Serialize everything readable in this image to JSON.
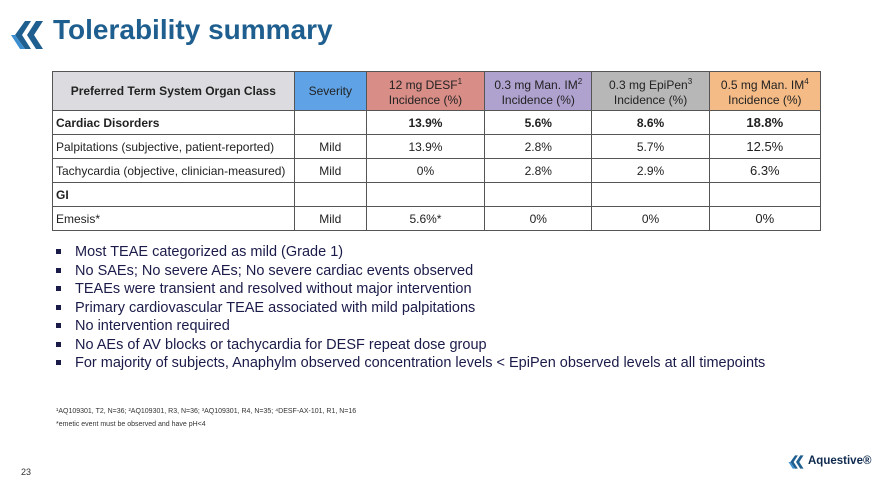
{
  "title": "Tolerability summary",
  "table": {
    "headers": {
      "c0": "Preferred Term System Organ Class",
      "c1": "Severity",
      "c2a": "12 mg DESF",
      "c2s": "1",
      "c2b": "Incidence (%)",
      "c3a": "0.3 mg Man. IM",
      "c3s": "2",
      "c3b": "Incidence (%)",
      "c4a": "0.3 mg EpiPen",
      "c4s": "3",
      "c4b": "Incidence (%)",
      "c5a": "0.5 mg Man. IM",
      "c5s": "4",
      "c5b": "Incidence (%)"
    },
    "rows": [
      {
        "name": "Cardiac Disorders",
        "severity": "",
        "desf": "13.9%",
        "man03": "5.6%",
        "epipen": "8.6%",
        "man05": "18.8%"
      },
      {
        "name": "Palpitations (subjective, patient-reported)",
        "severity": "Mild",
        "desf": "13.9%",
        "man03": "2.8%",
        "epipen": "5.7%",
        "man05": "12.5%"
      },
      {
        "name": "Tachycardia (objective, clinician-measured)",
        "severity": "Mild",
        "desf": "0%",
        "man03": "2.8%",
        "epipen": "2.9%",
        "man05": "6.3%"
      },
      {
        "name": "GI",
        "severity": "",
        "desf": "",
        "man03": "",
        "epipen": "",
        "man05": ""
      },
      {
        "name": "Emesis*",
        "severity": "Mild",
        "desf": "5.6%*",
        "man03": "0%",
        "epipen": "0%",
        "man05": "0%"
      }
    ]
  },
  "bullets": [
    "Most TEAE categorized as mild (Grade 1)",
    "No SAEs; No severe AEs; No severe cardiac events observed",
    "TEAEs were transient and resolved without major intervention",
    "Primary cardiovascular TEAE associated with mild palpitations",
    "No intervention required",
    "No AEs of AV blocks or tachycardia for DESF repeat dose group",
    "For majority of subjects, Anaphylm observed concentration levels < EpiPen observed levels at all timepoints"
  ],
  "footnotes": {
    "line1": "¹AQ109301, T2, N=36; ²AQ109301, R3, N=36; ³AQ109301, R4, N=35; ⁴DESF-AX-101, R1, N=16",
    "line2": "*emetic event must be observed and have pH<4"
  },
  "page_number": "23",
  "brand_name": "Aquestive®",
  "colors": {
    "title": "#1f5f8f",
    "severity_header": "#5fa3e6",
    "desf_header": "#d88d87",
    "man03_header": "#b0a2cf",
    "epipen_header": "#b7b7b7",
    "man05_header": "#f4bb86",
    "first_header": "#dcdce0"
  }
}
